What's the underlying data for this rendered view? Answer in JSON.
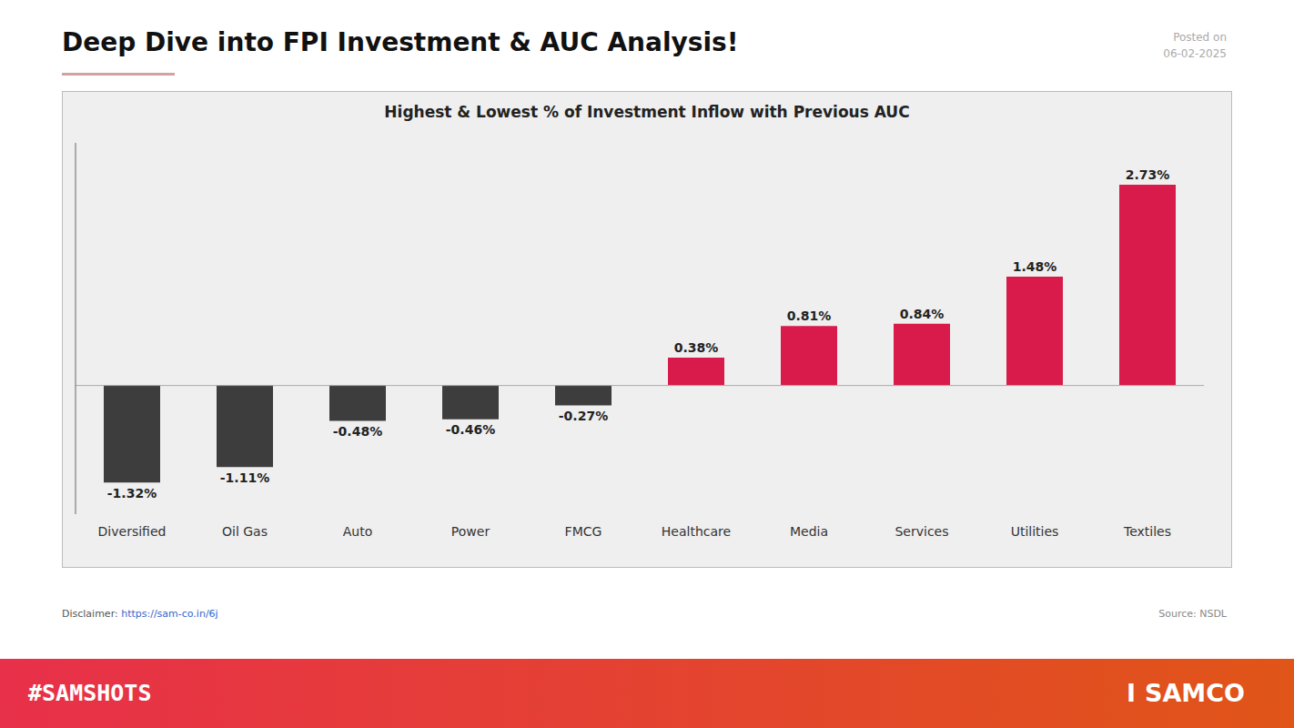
{
  "chart_data": {
    "type": "bar",
    "title": "Deep Dive into FPI Investment & AUC Analysis!",
    "subtitle": "Highest & Lowest % of Investment Inflow with Previous AUC",
    "categories": [
      "Diversified",
      "Oil Gas",
      "Auto",
      "Power",
      "FMCG",
      "Healthcare",
      "Media",
      "Services",
      "Utilities",
      "Textiles"
    ],
    "values": [
      -1.32,
      -1.11,
      -0.48,
      -0.46,
      -0.27,
      0.38,
      0.81,
      0.84,
      1.48,
      2.73
    ],
    "value_labels": [
      "-1.32%",
      "-1.11%",
      "-0.48%",
      "-0.46%",
      "-0.27%",
      "0.38%",
      "0.81%",
      "0.84%",
      "1.48%",
      "2.73%"
    ],
    "colors": [
      "#3d3d3d",
      "#3d3d3d",
      "#3d3d3d",
      "#3d3d3d",
      "#3d3d3d",
      "#d81b4a",
      "#d81b4a",
      "#d81b4a",
      "#d81b4a",
      "#d81b4a"
    ],
    "ylim": [
      -1.75,
      3.3
    ],
    "yticks": [],
    "grid": false,
    "data_labels": true,
    "tick_labels": "x",
    "annotations": [
      "Posted on\n06-02-2025",
      "Disclaimer:",
      "https://sam-co.in/6j",
      "Source: NSDL",
      "#SAMSHOTS",
      "Ӏ",
      "SAMCO"
    ]
  }
}
